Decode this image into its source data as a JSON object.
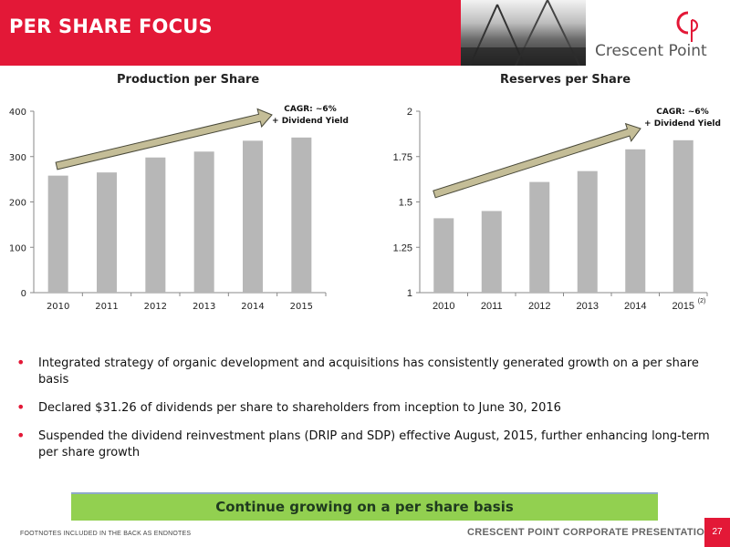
{
  "header": {
    "title": "PER SHARE FOCUS"
  },
  "logo": {
    "name": "Crescent Point"
  },
  "colors": {
    "brand_red": "#e31837",
    "bar": "#b7b7b7",
    "arrow": "#c4bd97",
    "banner": "#92d050"
  },
  "chart_data": [
    {
      "type": "bar",
      "title": "Production per Share",
      "categories": [
        "2010",
        "2011",
        "2012",
        "2013",
        "2014",
        "2015"
      ],
      "values": [
        258,
        265,
        298,
        311,
        335,
        342
      ],
      "ylim": [
        0,
        400
      ],
      "yticks": [
        "0",
        "100",
        "200",
        "300",
        "400"
      ],
      "annotation": {
        "line1": "CAGR: ~6%",
        "line2": "+ Dividend Yield"
      }
    },
    {
      "type": "bar",
      "title": "Reserves per Share",
      "categories": [
        "2010",
        "2011",
        "2012",
        "2013",
        "2014",
        "2015"
      ],
      "values": [
        1.41,
        1.45,
        1.61,
        1.67,
        1.79,
        1.84
      ],
      "ylim": [
        1,
        2
      ],
      "yticks": [
        "1",
        "1.25",
        "1.5",
        "1.75",
        "2"
      ],
      "annotation": {
        "line1": "CAGR: ~6%",
        "line2": "+ Dividend Yield"
      },
      "footnote_marker": "(2)"
    }
  ],
  "bullets": [
    "Integrated strategy of organic development and acquisitions has consistently generated growth on a per share basis",
    "Declared $31.26 of dividends per share to shareholders from inception to June 30, 2016",
    "Suspended the dividend reinvestment plans (DRIP and SDP) effective August, 2015, further enhancing long-term per share growth"
  ],
  "banner": "Continue growing on a per share basis",
  "footer": {
    "footnote": "FOOTNOTES INCLUDED IN THE BACK AS ENDNOTES",
    "title": "CRESCENT POINT CORPORATE PRESENTATION",
    "page": "27"
  }
}
